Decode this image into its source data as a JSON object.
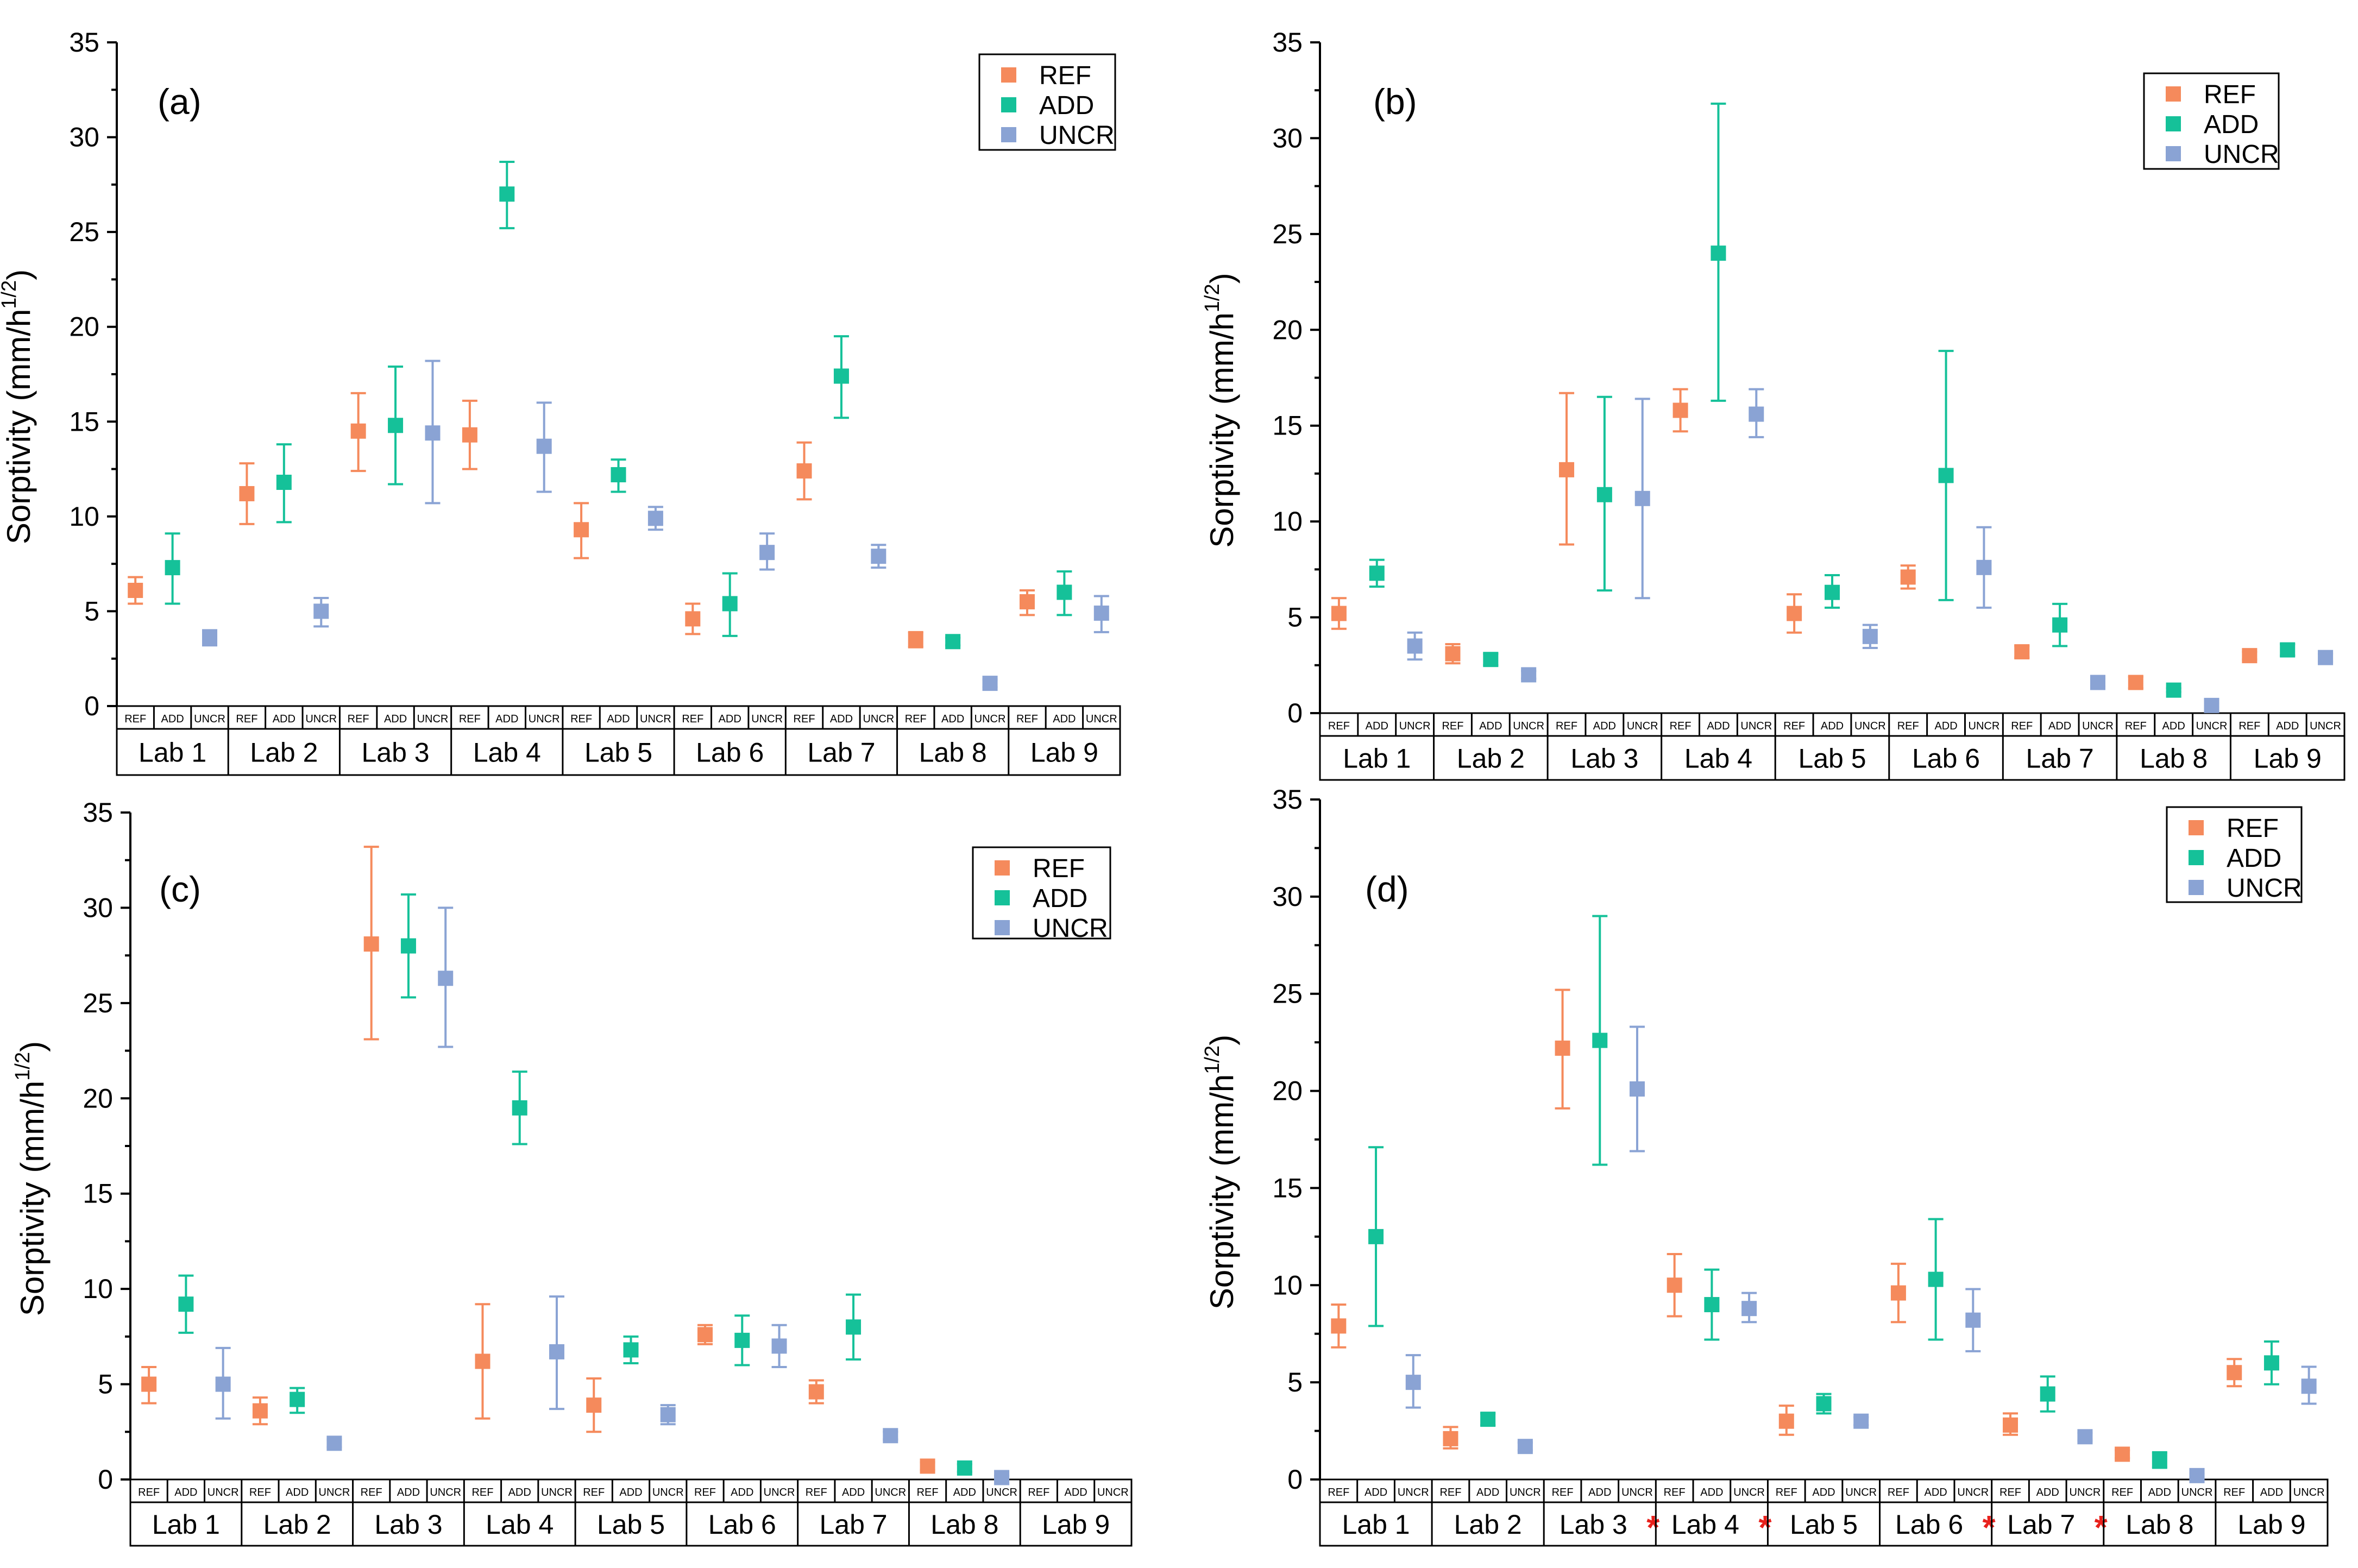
{
  "colors": {
    "REF": "#f58a5c",
    "ADD": "#15c199",
    "UNCR": "#8aa3d4"
  },
  "series_names": [
    "REF",
    "ADD",
    "UNCR"
  ],
  "chart_data": [
    {
      "type": "scatter",
      "panel": "(a)",
      "ylabel": "Sorptivity (mm/h1/2)",
      "ylabel_main": "Sorptivity (mm/h",
      "ylabel_sup": "1/2",
      "ylabel_end": ")",
      "ylim": [
        0,
        35
      ],
      "yticks": [
        "0",
        "5",
        "10",
        "15",
        "20",
        "25",
        "30",
        "35"
      ],
      "categories": [
        "Lab 1",
        "Lab 2",
        "Lab 3",
        "Lab 4",
        "Lab 5",
        "Lab 6",
        "Lab 7",
        "Lab 8",
        "Lab 9"
      ],
      "starred": [],
      "subcategories": [
        "REF",
        "ADD",
        "UNCR"
      ],
      "legend": [
        "REF",
        "ADD",
        "UNCR"
      ],
      "legend_position": "top-right",
      "series": [
        {
          "name": "REF",
          "values": [
            6.1,
            11.2,
            14.5,
            14.3,
            9.3,
            4.6,
            12.4,
            3.5,
            5.5
          ],
          "err_low": [
            5.4,
            9.6,
            12.4,
            12.5,
            7.8,
            3.8,
            10.9,
            3.1,
            4.8
          ],
          "err_high": [
            6.8,
            12.8,
            16.5,
            16.1,
            10.7,
            5.4,
            13.9,
            3.9,
            6.1
          ]
        },
        {
          "name": "ADD",
          "values": [
            7.3,
            11.8,
            14.8,
            27.0,
            12.2,
            5.4,
            17.4,
            3.4,
            6.0
          ],
          "err_low": [
            5.4,
            9.7,
            11.7,
            25.2,
            11.3,
            3.7,
            15.2,
            3.2,
            4.8
          ],
          "err_high": [
            9.1,
            13.8,
            17.9,
            28.7,
            13.0,
            7.0,
            19.5,
            3.6,
            7.1
          ]
        },
        {
          "name": "UNCR",
          "values": [
            3.6,
            5.0,
            14.4,
            13.7,
            9.9,
            8.1,
            7.9,
            1.2,
            4.9
          ],
          "err_low": [
            3.2,
            4.2,
            10.7,
            11.3,
            9.3,
            7.2,
            7.3,
            1.0,
            3.9
          ],
          "err_high": [
            4.0,
            5.7,
            18.2,
            16.0,
            10.5,
            9.1,
            8.5,
            1.4,
            5.8
          ]
        }
      ]
    },
    {
      "type": "scatter",
      "panel": "(b)",
      "ylabel": "Sorptivity (mm/h1/2)",
      "ylabel_main": "Sorptivity (mm/h",
      "ylabel_sup": "1/2",
      "ylabel_end": ")",
      "ylim": [
        0,
        35
      ],
      "yticks": [
        "0",
        "5",
        "10",
        "15",
        "20",
        "25",
        "30",
        "35"
      ],
      "categories": [
        "Lab 1",
        "Lab 2",
        "Lab 3",
        "Lab 4",
        "Lab 5",
        "Lab 6",
        "Lab 7",
        "Lab 8",
        "Lab 9"
      ],
      "starred": [],
      "subcategories": [
        "REF",
        "ADD",
        "UNCR"
      ],
      "legend": [
        "REF",
        "ADD",
        "UNCR"
      ],
      "legend_position": "top-right",
      "series": [
        {
          "name": "REF",
          "values": [
            5.2,
            3.1,
            12.7,
            15.8,
            5.2,
            7.1,
            3.2,
            1.6,
            3.0
          ],
          "err_low": [
            4.4,
            2.6,
            8.8,
            14.7,
            4.2,
            6.5,
            2.9,
            1.3,
            2.8
          ],
          "err_high": [
            6.0,
            3.6,
            16.7,
            16.9,
            6.2,
            7.7,
            3.5,
            1.9,
            3.2
          ]
        },
        {
          "name": "ADD",
          "values": [
            7.3,
            2.8,
            11.4,
            24.0,
            6.3,
            12.4,
            4.6,
            1.2,
            3.3
          ],
          "err_low": [
            6.6,
            2.5,
            6.4,
            16.3,
            5.5,
            5.9,
            3.5,
            1.1,
            3.0
          ],
          "err_high": [
            8.0,
            3.1,
            16.5,
            31.8,
            7.2,
            18.9,
            5.7,
            1.3,
            3.6
          ]
        },
        {
          "name": "UNCR",
          "values": [
            3.5,
            2.0,
            11.2,
            15.6,
            4.0,
            7.6,
            1.6,
            0.4,
            2.9
          ],
          "err_low": [
            2.8,
            1.8,
            6.0,
            14.4,
            3.4,
            5.5,
            1.4,
            0.3,
            2.7
          ],
          "err_high": [
            4.2,
            2.2,
            16.4,
            16.9,
            4.6,
            9.7,
            1.8,
            0.5,
            3.1
          ]
        }
      ]
    },
    {
      "type": "scatter",
      "panel": "(c)",
      "ylabel": "Sorptivity (mm/h1/2)",
      "ylabel_main": "Sorptivity (mm/h",
      "ylabel_sup": "1/2",
      "ylabel_end": ")",
      "ylim": [
        0,
        35
      ],
      "yticks": [
        "0",
        "5",
        "10",
        "15",
        "20",
        "25",
        "30",
        "35"
      ],
      "categories": [
        "Lab 1",
        "Lab 2",
        "Lab 3",
        "Lab 4",
        "Lab 5",
        "Lab 6",
        "Lab 7",
        "Lab 8",
        "Lab 9"
      ],
      "starred": [],
      "subcategories": [
        "REF",
        "ADD",
        "UNCR"
      ],
      "legend": [
        "REF",
        "ADD",
        "UNCR"
      ],
      "legend_position": "top-right",
      "series": [
        {
          "name": "REF",
          "values": [
            5.0,
            3.6,
            28.1,
            6.2,
            3.9,
            7.6,
            4.6,
            0.7,
            null
          ],
          "err_low": [
            4.0,
            2.9,
            23.1,
            3.2,
            2.5,
            7.1,
            4.0,
            0.5,
            null
          ],
          "err_high": [
            5.9,
            4.3,
            33.2,
            9.2,
            5.3,
            8.1,
            5.2,
            0.9,
            null
          ]
        },
        {
          "name": "ADD",
          "values": [
            9.2,
            4.2,
            28.0,
            19.5,
            6.8,
            7.3,
            8.0,
            0.6,
            null
          ],
          "err_low": [
            7.7,
            3.5,
            25.3,
            17.6,
            6.1,
            6.0,
            6.3,
            0.4,
            null
          ],
          "err_high": [
            10.7,
            4.8,
            30.7,
            21.4,
            7.5,
            8.6,
            9.7,
            0.8,
            null
          ]
        },
        {
          "name": "UNCR",
          "values": [
            5.0,
            1.9,
            26.3,
            6.7,
            3.4,
            7.0,
            2.3,
            0.1,
            null
          ],
          "err_low": [
            3.2,
            1.7,
            22.7,
            3.7,
            2.9,
            5.9,
            2.1,
            0.0,
            null
          ],
          "err_high": [
            6.9,
            2.1,
            30.0,
            9.6,
            3.9,
            8.1,
            2.5,
            0.2,
            null
          ]
        }
      ]
    },
    {
      "type": "scatter",
      "panel": "(d)",
      "ylabel": "Sorptivity (mm/h1/2)",
      "ylabel_main": "Sorptivity (mm/h",
      "ylabel_sup": "1/2",
      "ylabel_end": ")",
      "ylim": [
        0,
        35
      ],
      "yticks": [
        "0",
        "5",
        "10",
        "15",
        "20",
        "25",
        "30",
        "35"
      ],
      "categories": [
        "Lab 1",
        "Lab 2",
        "Lab 3",
        "Lab 4",
        "Lab 5",
        "Lab 6",
        "Lab 7",
        "Lab 8",
        "Lab 9"
      ],
      "starred": [
        false,
        false,
        true,
        true,
        false,
        true,
        true,
        false,
        false
      ],
      "star_symbol": "*",
      "subcategories": [
        "REF",
        "ADD",
        "UNCR"
      ],
      "legend": [
        "REF",
        "ADD",
        "UNCR"
      ],
      "legend_position": "top-right",
      "series": [
        {
          "name": "REF",
          "values": [
            7.9,
            2.1,
            22.2,
            10.0,
            3.0,
            9.6,
            2.8,
            1.3,
            5.5
          ],
          "err_low": [
            6.8,
            1.6,
            19.1,
            8.4,
            2.3,
            8.1,
            2.3,
            1.1,
            4.8
          ],
          "err_high": [
            9.0,
            2.7,
            25.2,
            11.6,
            3.8,
            11.1,
            3.4,
            1.5,
            6.2
          ]
        },
        {
          "name": "ADD",
          "values": [
            12.5,
            3.1,
            22.6,
            9.0,
            3.9,
            10.3,
            4.4,
            1.0,
            6.0
          ],
          "err_low": [
            7.9,
            2.8,
            16.2,
            7.2,
            3.4,
            7.2,
            3.5,
            0.6,
            4.9
          ],
          "err_high": [
            17.1,
            3.4,
            29.0,
            10.8,
            4.4,
            13.4,
            5.3,
            1.4,
            7.1
          ]
        },
        {
          "name": "UNCR",
          "values": [
            5.0,
            1.7,
            20.1,
            8.8,
            3.0,
            8.2,
            2.2,
            0.2,
            4.8
          ],
          "err_low": [
            3.7,
            1.5,
            16.9,
            8.1,
            2.8,
            6.6,
            2.0,
            0.1,
            3.9
          ],
          "err_high": [
            6.4,
            1.9,
            23.3,
            9.6,
            3.2,
            9.8,
            2.4,
            0.3,
            5.8
          ]
        }
      ]
    }
  ]
}
